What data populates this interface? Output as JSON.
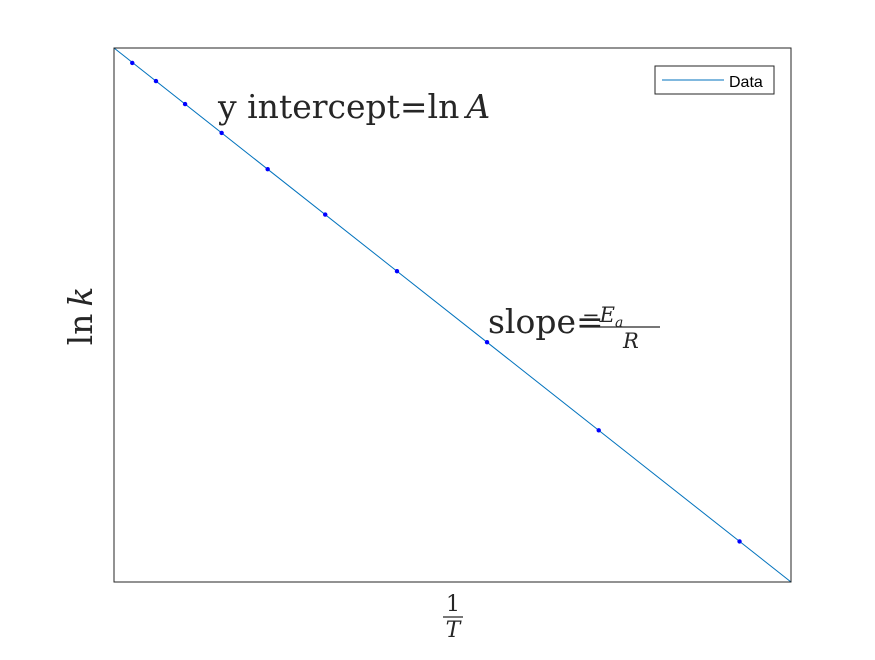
{
  "chart_data": {
    "type": "line",
    "title": "",
    "xlabel": {
      "numerator": "1",
      "denominator": "T"
    },
    "ylabel": {
      "fn": "ln",
      "var": "k"
    },
    "xlim": [
      0,
      1
    ],
    "ylim": [
      0,
      1
    ],
    "x_tick_labels": [],
    "y_tick_labels": [],
    "grid": false,
    "legend": {
      "position": "top-right",
      "entries": [
        "Data"
      ]
    },
    "series": [
      {
        "name": "Data",
        "color": "#0072BD",
        "marker_color": "#0000FF",
        "marker": "point",
        "x": [
          0.027,
          0.062,
          0.105,
          0.159,
          0.227,
          0.312,
          0.418,
          0.551,
          0.716,
          0.924
        ],
        "y": [
          0.972,
          0.938,
          0.895,
          0.841,
          0.773,
          0.688,
          0.582,
          0.449,
          0.284,
          0.076
        ]
      }
    ],
    "fit_line": {
      "x": [
        0,
        1
      ],
      "y": [
        1,
        0
      ]
    },
    "annotations": {
      "intercept": {
        "prefix": "y intercept=ln",
        "var": "A"
      },
      "slope": {
        "prefix": "slope=",
        "num_sign": "−",
        "num_var": "E",
        "num_sub": "a",
        "den_var": "R"
      }
    }
  },
  "style": {
    "axes_color": "#262626",
    "background": "#ffffff"
  }
}
